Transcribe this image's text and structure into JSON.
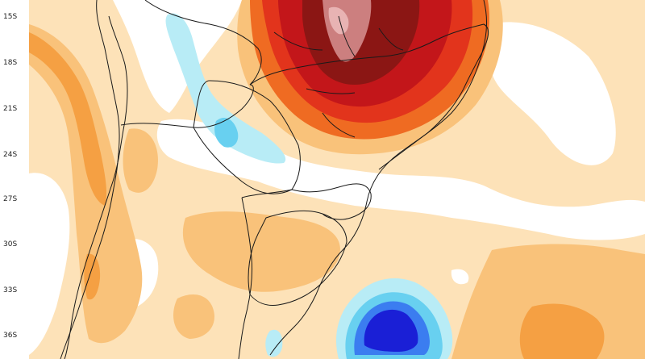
{
  "map": {
    "latitude_labels": [
      "15S",
      "18S",
      "21S",
      "24S",
      "27S",
      "30S",
      "33S",
      "36S"
    ],
    "colors": {
      "ocean_white": "#ffffff",
      "anomaly_pos_1": "#fde2b8",
      "anomaly_pos_2": "#f9c27a",
      "anomaly_pos_3": "#f5a043",
      "anomaly_pos_4": "#ef6b22",
      "anomaly_pos_5": "#e2341c",
      "anomaly_pos_6": "#c3161a",
      "anomaly_pos_7": "#8b1614",
      "anomaly_pos_8": "#cc7f7f",
      "anomaly_neg_1": "#b8ecf6",
      "anomaly_neg_2": "#68d0f0",
      "anomaly_neg_3": "#3b7df0",
      "anomaly_neg_4": "#1a1fd6",
      "border_line": "#1a1a1a"
    }
  }
}
